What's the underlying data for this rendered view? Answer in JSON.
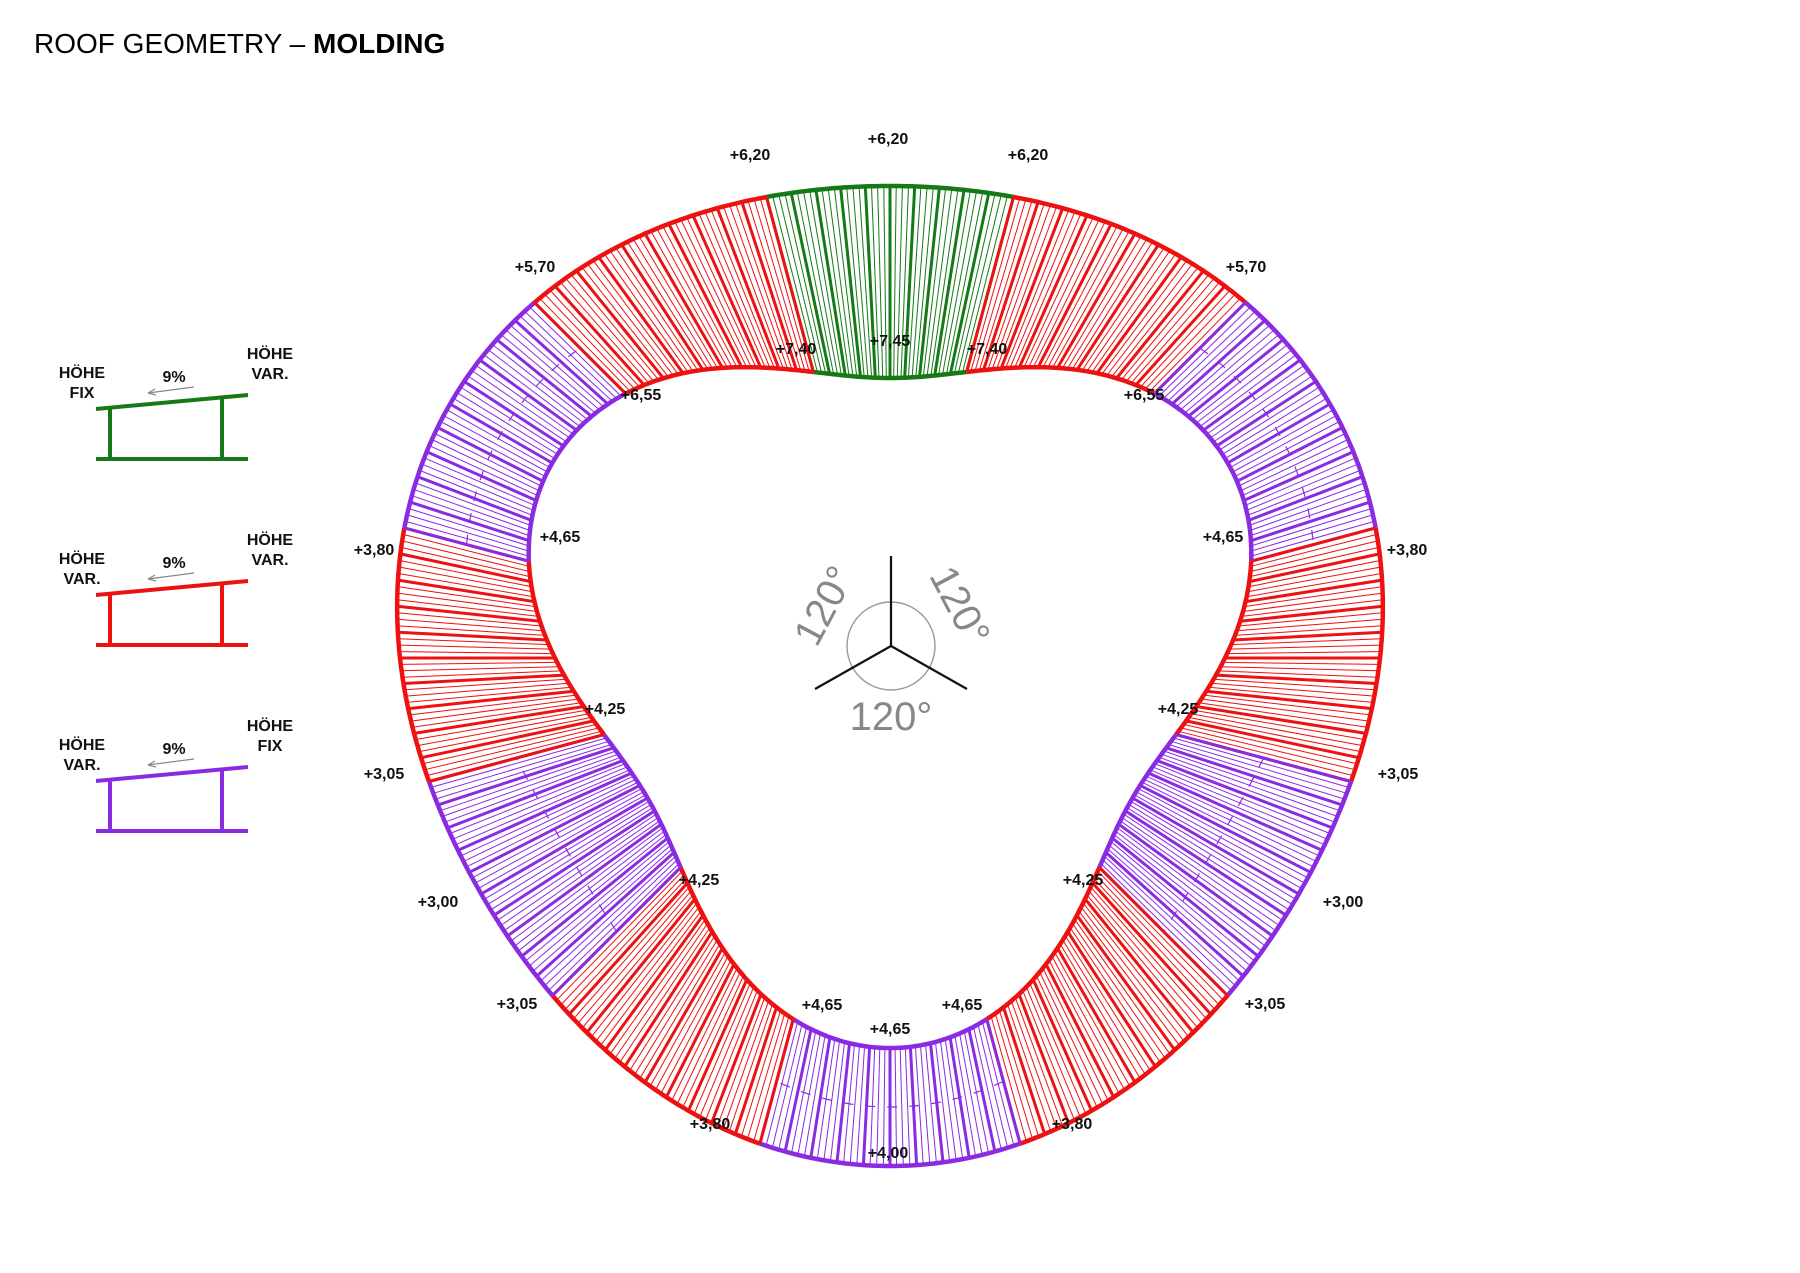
{
  "title": {
    "regular": "ROOF GEOMETRY – ",
    "bold": "MOLDING"
  },
  "colors": {
    "green": "#157a15",
    "red": "#ee1111",
    "purple": "#8a2be2",
    "ink": "#111111",
    "gray": "#888888"
  },
  "legend": [
    {
      "color": "green",
      "left_label": [
        "HÖHE",
        "FIX"
      ],
      "right_label": [
        "HÖHE",
        "VAR."
      ],
      "slope": "9%"
    },
    {
      "color": "red",
      "left_label": [
        "HÖHE",
        "VAR."
      ],
      "right_label": [
        "HÖHE",
        "VAR."
      ],
      "slope": "9%"
    },
    {
      "color": "purple",
      "left_label": [
        "HÖHE",
        "VAR."
      ],
      "right_label": [
        "HÖHE",
        "FIX"
      ],
      "slope": "9%"
    }
  ],
  "angles": [
    "120°",
    "120°",
    "120°"
  ],
  "ring_segments": [
    "green",
    "red",
    "purple",
    "red",
    "purple",
    "red",
    "purple",
    "red",
    "purple",
    "red",
    "purple",
    "red"
  ],
  "outer_elevations": [
    "+6,20",
    "+6,20",
    "+6,20",
    "+5,70",
    "+5,70",
    "+3,80",
    "+3,80",
    "+3,05",
    "+3,05",
    "+3,00",
    "+3,00",
    "+3,05",
    "+3,05",
    "+3,80",
    "+3,80",
    "+4,00"
  ],
  "inner_elevations": [
    "+7,45",
    "+7,40",
    "+7,40",
    "+6,55",
    "+6,55",
    "+4,65",
    "+4,65",
    "+4,25",
    "+4,25",
    "+4,25",
    "+4,25",
    "+4,65",
    "+4,65",
    "+4,65"
  ]
}
